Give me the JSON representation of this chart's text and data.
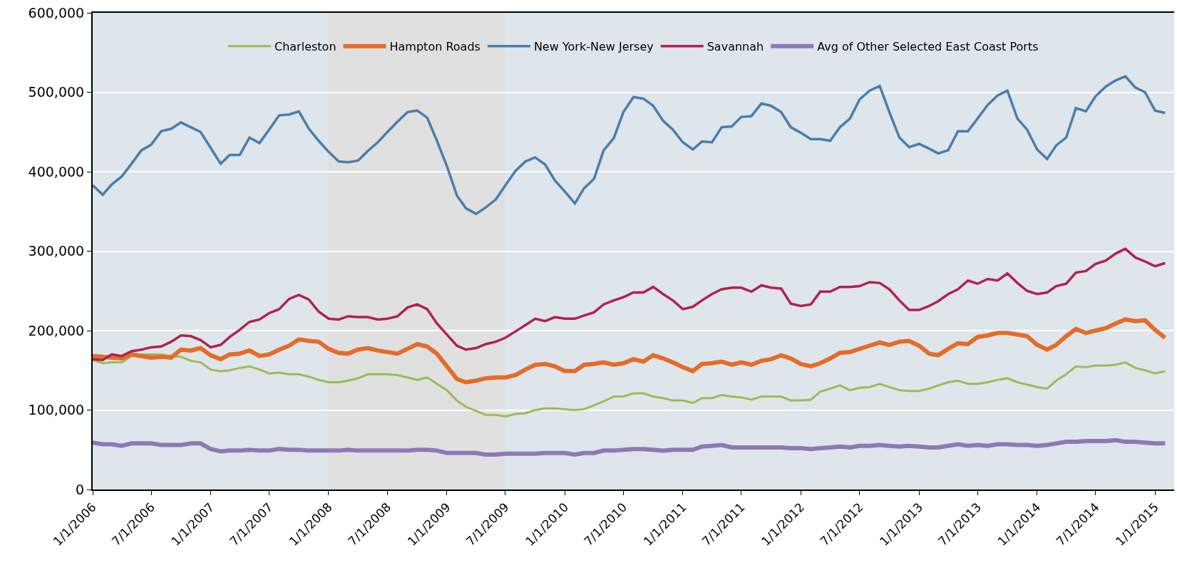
{
  "chart_data": {
    "type": "line",
    "x": [
      "2006-01",
      "2006-02",
      "2006-03",
      "2006-04",
      "2006-05",
      "2006-06",
      "2006-07",
      "2006-08",
      "2006-09",
      "2006-10",
      "2006-11",
      "2006-12",
      "2007-01",
      "2007-02",
      "2007-03",
      "2007-04",
      "2007-05",
      "2007-06",
      "2007-07",
      "2007-08",
      "2007-09",
      "2007-10",
      "2007-11",
      "2007-12",
      "2008-01",
      "2008-02",
      "2008-03",
      "2008-04",
      "2008-05",
      "2008-06",
      "2008-07",
      "2008-08",
      "2008-09",
      "2008-10",
      "2008-11",
      "2008-12",
      "2009-01",
      "2009-02",
      "2009-03",
      "2009-04",
      "2009-05",
      "2009-06",
      "2009-07",
      "2009-08",
      "2009-09",
      "2009-10",
      "2009-11",
      "2009-12",
      "2010-01",
      "2010-02",
      "2010-03",
      "2010-04",
      "2010-05",
      "2010-06",
      "2010-07",
      "2010-08",
      "2010-09",
      "2010-10",
      "2010-11",
      "2010-12",
      "2011-01",
      "2011-02",
      "2011-03",
      "2011-04",
      "2011-05",
      "2011-06",
      "2011-07",
      "2011-08",
      "2011-09",
      "2011-10",
      "2011-11",
      "2011-12",
      "2012-01",
      "2012-02",
      "2012-03",
      "2012-04",
      "2012-05",
      "2012-06",
      "2012-07",
      "2012-08",
      "2012-09",
      "2012-10",
      "2012-11",
      "2012-12",
      "2013-01",
      "2013-02",
      "2013-03",
      "2013-04",
      "2013-05",
      "2013-06",
      "2013-07",
      "2013-08",
      "2013-09",
      "2013-10",
      "2013-11",
      "2013-12",
      "2014-01",
      "2014-02",
      "2014-03",
      "2014-04",
      "2014-05",
      "2014-06",
      "2014-07",
      "2014-08",
      "2014-09",
      "2014-10",
      "2014-11",
      "2014-12",
      "2015-01",
      "2015-02"
    ],
    "series": [
      {
        "name": "Charleston",
        "color": "#9bbb59",
        "values": [
          163000,
          159000,
          160000,
          160000,
          168000,
          170000,
          170000,
          170000,
          168000,
          167000,
          162000,
          160000,
          151000,
          149000,
          150000,
          153000,
          155000,
          151000,
          146000,
          147000,
          145000,
          145000,
          142000,
          138000,
          135000,
          135000,
          137000,
          140000,
          145000,
          145000,
          145000,
          144000,
          141000,
          138000,
          141000,
          133000,
          125000,
          112000,
          104000,
          99000,
          94000,
          94000,
          92000,
          95000,
          96000,
          100000,
          102000,
          102000,
          101000,
          100000,
          101000,
          106000,
          111000,
          117000,
          117000,
          121000,
          121000,
          117000,
          115000,
          112000,
          112000,
          109000,
          115000,
          115000,
          119000,
          117000,
          116000,
          113000,
          117000,
          117000,
          117000,
          112000,
          112000,
          113000,
          123000,
          127000,
          131000,
          125000,
          128000,
          129000,
          133000,
          129000,
          125000,
          124000,
          124000,
          127000,
          131000,
          135000,
          137000,
          133000,
          133000,
          135000,
          138000,
          140000,
          135000,
          132000,
          129000,
          127000,
          137000,
          145000,
          155000,
          154000,
          156000,
          156000,
          157000,
          160000,
          153000,
          150000,
          146000,
          149000
        ]
      },
      {
        "name": "Hampton Roads",
        "color": "#e46c2a",
        "values": [
          168000,
          167000,
          166000,
          165000,
          170000,
          168000,
          166000,
          167000,
          166000,
          176000,
          175000,
          178000,
          169000,
          164000,
          170000,
          171000,
          175000,
          168000,
          170000,
          176000,
          181000,
          189000,
          187000,
          186000,
          177000,
          172000,
          171000,
          176000,
          178000,
          175000,
          173000,
          171000,
          177000,
          183000,
          180000,
          171000,
          155000,
          139000,
          135000,
          137000,
          140000,
          141000,
          141000,
          144000,
          151000,
          157000,
          158000,
          155000,
          149000,
          149000,
          157000,
          158000,
          160000,
          157000,
          159000,
          164000,
          161000,
          169000,
          165000,
          160000,
          154000,
          149000,
          158000,
          159000,
          161000,
          157000,
          160000,
          157000,
          162000,
          164000,
          169000,
          165000,
          158000,
          155000,
          159000,
          165000,
          172000,
          173000,
          177000,
          181000,
          185000,
          182000,
          186000,
          187000,
          181000,
          171000,
          169000,
          177000,
          184000,
          183000,
          192000,
          194000,
          197000,
          197000,
          195000,
          193000,
          182000,
          176000,
          182000,
          193000,
          202000,
          197000,
          200000,
          203000,
          209000,
          214000,
          212000,
          213000,
          201000,
          191000
        ]
      },
      {
        "name": "New York-New Jersey",
        "color": "#4a7eab",
        "values": [
          383000,
          371000,
          384000,
          394000,
          410000,
          427000,
          434000,
          451000,
          454000,
          462000,
          456000,
          450000,
          430000,
          410000,
          421000,
          421000,
          443000,
          436000,
          453000,
          471000,
          472000,
          476000,
          454000,
          439000,
          425000,
          413000,
          412000,
          414000,
          426000,
          437000,
          450000,
          463000,
          475000,
          477000,
          468000,
          439000,
          407000,
          370000,
          354000,
          347000,
          355000,
          365000,
          383000,
          401000,
          413000,
          418000,
          409000,
          389000,
          375000,
          360000,
          379000,
          391000,
          427000,
          442000,
          475000,
          494000,
          492000,
          483000,
          464000,
          453000,
          437000,
          428000,
          438000,
          437000,
          456000,
          457000,
          469000,
          470000,
          486000,
          483000,
          475000,
          456000,
          449000,
          441000,
          441000,
          439000,
          456000,
          467000,
          491000,
          502000,
          508000,
          475000,
          443000,
          431000,
          435000,
          429000,
          423000,
          427000,
          451000,
          451000,
          467000,
          484000,
          496000,
          502000,
          467000,
          453000,
          428000,
          416000,
          433000,
          443000,
          480000,
          476000,
          495000,
          507000,
          515000,
          520000,
          506000,
          500000,
          477000,
          474000
        ]
      },
      {
        "name": "Savannah",
        "color": "#b0234a",
        "values": [
          164000,
          163000,
          170000,
          168000,
          174000,
          176000,
          179000,
          180000,
          186000,
          194000,
          193000,
          188000,
          179000,
          182000,
          192000,
          201000,
          211000,
          214000,
          222000,
          227000,
          240000,
          245000,
          239000,
          224000,
          215000,
          214000,
          218000,
          217000,
          217000,
          214000,
          215000,
          218000,
          229000,
          233000,
          227000,
          209000,
          195000,
          181000,
          176000,
          178000,
          183000,
          186000,
          191000,
          199000,
          207000,
          215000,
          212000,
          217000,
          215000,
          215000,
          219000,
          223000,
          233000,
          238000,
          242000,
          248000,
          248000,
          255000,
          246000,
          238000,
          227000,
          230000,
          238000,
          246000,
          252000,
          254000,
          254000,
          249000,
          257000,
          254000,
          253000,
          234000,
          231000,
          233000,
          249000,
          249000,
          255000,
          255000,
          256000,
          261000,
          260000,
          252000,
          238000,
          226000,
          226000,
          231000,
          237000,
          246000,
          252000,
          263000,
          259000,
          265000,
          263000,
          272000,
          260000,
          250000,
          246000,
          248000,
          256000,
          259000,
          273000,
          275000,
          284000,
          288000,
          297000,
          303000,
          292000,
          287000,
          281000,
          285000
        ]
      },
      {
        "name": "Avg of Other Selected East Coast Ports",
        "color": "#8f78b4",
        "values": [
          59000,
          57000,
          57000,
          55000,
          58000,
          58000,
          58000,
          56000,
          56000,
          56000,
          58000,
          58000,
          51000,
          48000,
          49000,
          49000,
          50000,
          49000,
          49000,
          51000,
          50000,
          50000,
          49000,
          49000,
          49000,
          49000,
          50000,
          49000,
          49000,
          49000,
          49000,
          49000,
          49000,
          50000,
          50000,
          49000,
          46000,
          46000,
          46000,
          46000,
          44000,
          44000,
          45000,
          45000,
          45000,
          45000,
          46000,
          46000,
          46000,
          44000,
          46000,
          46000,
          49000,
          49000,
          50000,
          51000,
          51000,
          50000,
          49000,
          50000,
          50000,
          50000,
          54000,
          55000,
          56000,
          53000,
          53000,
          53000,
          53000,
          53000,
          53000,
          52000,
          52000,
          51000,
          52000,
          53000,
          54000,
          53000,
          55000,
          55000,
          56000,
          55000,
          54000,
          55000,
          54000,
          53000,
          53000,
          55000,
          57000,
          55000,
          56000,
          55000,
          57000,
          57000,
          56000,
          56000,
          55000,
          56000,
          58000,
          60000,
          60000,
          61000,
          61000,
          61000,
          62000,
          60000,
          60000,
          59000,
          58000,
          58000
        ]
      }
    ],
    "ylim": [
      0,
      600000
    ],
    "yticks": [
      0,
      {
        "value": 100000,
        "label": "100,000"
      },
      {
        "value": 200000,
        "label": "200,000"
      },
      {
        "value": 300000,
        "label": "300,000"
      },
      {
        "value": 400000,
        "label": "400,000"
      },
      {
        "value": 500000,
        "label": "500,000"
      },
      {
        "value": 600000,
        "label": "600,000"
      }
    ],
    "xlim": [
      "2006-01-01",
      "2015-03-01"
    ],
    "xticks": [
      {
        "value": "2006-01-01",
        "label": "1/1/2006"
      },
      {
        "value": "2006-07-01",
        "label": "7/1/2006"
      },
      {
        "value": "2007-01-01",
        "label": "1/1/2007"
      },
      {
        "value": "2007-07-01",
        "label": "7/1/2007"
      },
      {
        "value": "2008-01-01",
        "label": "1/1/2008"
      },
      {
        "value": "2008-07-01",
        "label": "7/1/2008"
      },
      {
        "value": "2009-01-01",
        "label": "1/1/2009"
      },
      {
        "value": "2009-07-01",
        "label": "7/1/2009"
      },
      {
        "value": "2010-01-01",
        "label": "1/1/2010"
      },
      {
        "value": "2010-07-01",
        "label": "7/1/2010"
      },
      {
        "value": "2011-01-01",
        "label": "1/1/2011"
      },
      {
        "value": "2011-07-01",
        "label": "7/1/2011"
      },
      {
        "value": "2012-01-01",
        "label": "1/1/2012"
      },
      {
        "value": "2012-07-01",
        "label": "7/1/2012"
      },
      {
        "value": "2013-01-01",
        "label": "1/1/2013"
      },
      {
        "value": "2013-07-01",
        "label": "7/1/2013"
      },
      {
        "value": "2014-01-01",
        "label": "1/1/2014"
      },
      {
        "value": "2014-07-01",
        "label": "7/1/2014"
      },
      {
        "value": "2015-01-01",
        "label": "1/1/2015"
      }
    ],
    "bands": [
      {
        "axis": "x",
        "from": "2008-01-01",
        "to": "2009-07-01",
        "color": "#e0e0e0"
      }
    ],
    "grid": "y",
    "legend": "top",
    "marker": "none",
    "line_style": "solid"
  }
}
